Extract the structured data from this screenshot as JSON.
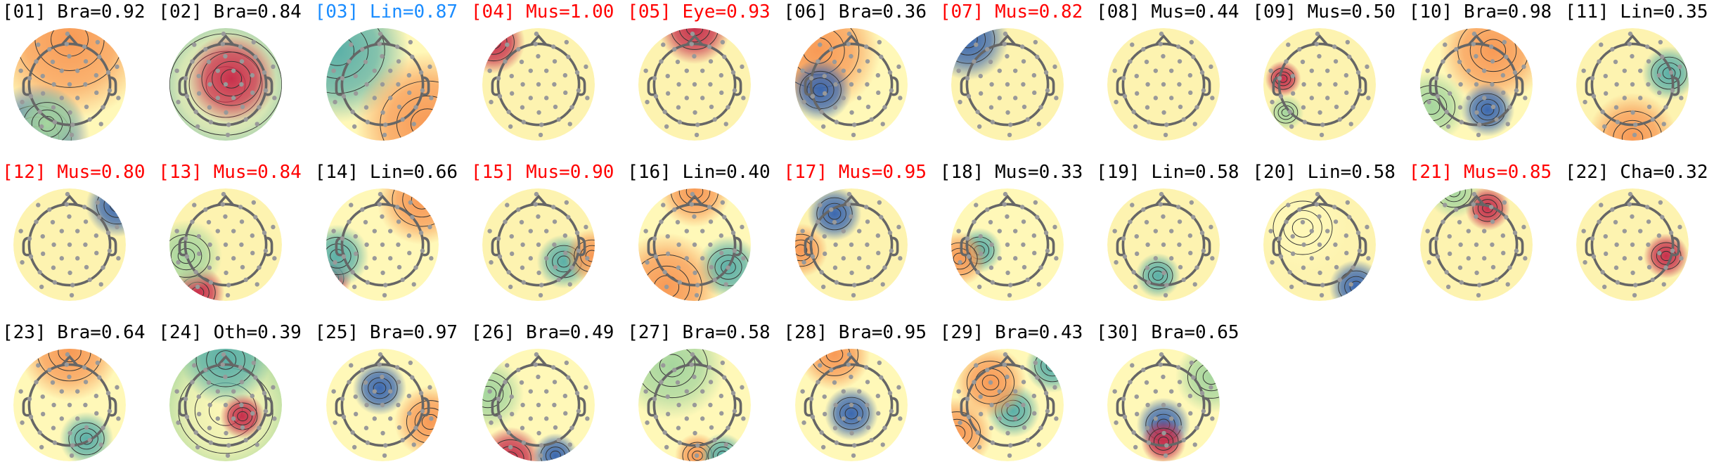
{
  "chart_data": {
    "type": "heatmap",
    "colormap": "spectral (red = positive, blue = negative)",
    "label_colors": {
      "default": "#000000",
      "highlight_blue": "#1a8cff",
      "highlight_red": "#ff0000"
    },
    "components": [
      {
        "id": "[01]",
        "label": "Bra=0.92",
        "color": "#000000"
      },
      {
        "id": "[02]",
        "label": "Bra=0.84",
        "color": "#000000"
      },
      {
        "id": "[03]",
        "label": "Lin=0.87",
        "color": "#1a8cff"
      },
      {
        "id": "[04]",
        "label": "Mus=1.00",
        "color": "#ff0000"
      },
      {
        "id": "[05]",
        "label": "Eye=0.93",
        "color": "#ff0000"
      },
      {
        "id": "[06]",
        "label": "Bra=0.36",
        "color": "#000000"
      },
      {
        "id": "[07]",
        "label": "Mus=0.82",
        "color": "#ff0000"
      },
      {
        "id": "[08]",
        "label": "Mus=0.44",
        "color": "#000000"
      },
      {
        "id": "[09]",
        "label": "Mus=0.50",
        "color": "#000000"
      },
      {
        "id": "[10]",
        "label": "Bra=0.98",
        "color": "#000000"
      },
      {
        "id": "[11]",
        "label": "Lin=0.35",
        "color": "#000000"
      },
      {
        "id": "[12]",
        "label": "Mus=0.80",
        "color": "#ff0000"
      },
      {
        "id": "[13]",
        "label": "Mus=0.84",
        "color": "#ff0000"
      },
      {
        "id": "[14]",
        "label": "Lin=0.66",
        "color": "#000000"
      },
      {
        "id": "[15]",
        "label": "Mus=0.90",
        "color": "#ff0000"
      },
      {
        "id": "[16]",
        "label": "Lin=0.40",
        "color": "#000000"
      },
      {
        "id": "[17]",
        "label": "Mus=0.95",
        "color": "#ff0000"
      },
      {
        "id": "[18]",
        "label": "Mus=0.33",
        "color": "#000000"
      },
      {
        "id": "[19]",
        "label": "Lin=0.58",
        "color": "#000000"
      },
      {
        "id": "[20]",
        "label": "Lin=0.58",
        "color": "#000000"
      },
      {
        "id": "[21]",
        "label": "Mus=0.85",
        "color": "#ff0000"
      },
      {
        "id": "[22]",
        "label": "Cha=0.32",
        "color": "#000000"
      },
      {
        "id": "[23]",
        "label": "Bra=0.64",
        "color": "#000000"
      },
      {
        "id": "[24]",
        "label": "Oth=0.39",
        "color": "#000000"
      },
      {
        "id": "[25]",
        "label": "Bra=0.97",
        "color": "#000000"
      },
      {
        "id": "[26]",
        "label": "Bra=0.49",
        "color": "#000000"
      },
      {
        "id": "[27]",
        "label": "Bra=0.58",
        "color": "#000000"
      },
      {
        "id": "[28]",
        "label": "Bra=0.95",
        "color": "#000000"
      },
      {
        "id": "[29]",
        "label": "Bra=0.43",
        "color": "#000000"
      },
      {
        "id": "[30]",
        "label": "Bra=0.65",
        "color": "#000000"
      }
    ]
  }
}
